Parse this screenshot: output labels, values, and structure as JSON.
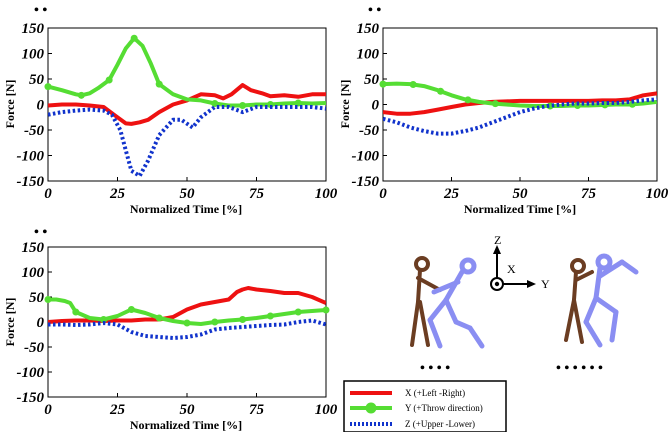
{
  "colors": {
    "x_series": "#ee1111",
    "y_series": "#55dd33",
    "z_series": "#1133cc",
    "figure_brown": "#6b3d22",
    "figure_blue": "#8a8ef2"
  },
  "chart_data": [
    {
      "type": "line",
      "panel_note": "• •",
      "xlabel": "Normalized Time [%]",
      "ylabel": "Force [N]",
      "xlim": [
        0,
        100
      ],
      "ylim": [
        -150,
        150
      ],
      "xticks": [
        0,
        25,
        50,
        75,
        100
      ],
      "yticks": [
        150,
        100,
        50,
        0,
        -50,
        -100,
        -150
      ],
      "series": [
        {
          "key": "x",
          "style": "solid",
          "x": [
            0,
            5,
            10,
            15,
            20,
            25,
            28,
            30,
            33,
            36,
            40,
            45,
            50,
            55,
            60,
            63,
            66,
            70,
            73,
            77,
            80,
            85,
            90,
            95,
            100
          ],
          "y": [
            -2,
            0,
            0,
            -2,
            -5,
            -25,
            -37,
            -38,
            -35,
            -30,
            -15,
            0,
            8,
            20,
            18,
            12,
            20,
            38,
            28,
            22,
            16,
            18,
            15,
            20,
            20
          ]
        },
        {
          "key": "y",
          "style": "marker",
          "x": [
            0,
            5,
            10,
            12,
            15,
            18,
            22,
            25,
            28,
            31,
            34,
            37,
            40,
            45,
            50,
            55,
            60,
            65,
            70,
            75,
            80,
            85,
            90,
            95,
            100
          ],
          "y": [
            35,
            28,
            20,
            18,
            22,
            32,
            48,
            78,
            110,
            130,
            115,
            80,
            40,
            20,
            10,
            8,
            2,
            -2,
            -2,
            0,
            0,
            2,
            3,
            2,
            3
          ],
          "markers_x": [
            0,
            12,
            22,
            31,
            40,
            60,
            70,
            80,
            90
          ]
        },
        {
          "key": "z",
          "style": "dotted",
          "x": [
            0,
            5,
            10,
            15,
            20,
            23,
            26,
            28,
            30,
            33,
            36,
            40,
            45,
            48,
            52,
            55,
            60,
            65,
            70,
            75,
            80,
            85,
            90,
            95,
            100
          ],
          "y": [
            -20,
            -15,
            -12,
            -10,
            -12,
            -20,
            -50,
            -90,
            -130,
            -140,
            -110,
            -60,
            -30,
            -30,
            -45,
            -25,
            -5,
            -5,
            -15,
            -5,
            -5,
            -5,
            -5,
            -5,
            -8
          ]
        }
      ]
    },
    {
      "type": "line",
      "panel_note": "• •",
      "xlabel": "Normalized Time [%]",
      "ylabel": "Force [N]",
      "xlim": [
        0,
        100
      ],
      "ylim": [
        -150,
        150
      ],
      "xticks": [
        0,
        25,
        50,
        75,
        100
      ],
      "yticks": [
        150,
        100,
        50,
        0,
        -50,
        -100,
        -150
      ],
      "series": [
        {
          "key": "x",
          "style": "solid",
          "x": [
            0,
            5,
            10,
            15,
            20,
            25,
            30,
            35,
            40,
            45,
            50,
            55,
            60,
            65,
            70,
            75,
            80,
            85,
            90,
            95,
            100
          ],
          "y": [
            -15,
            -18,
            -18,
            -15,
            -10,
            -5,
            0,
            3,
            5,
            6,
            7,
            7,
            7,
            7,
            7,
            7,
            8,
            8,
            10,
            18,
            22
          ]
        },
        {
          "key": "y",
          "style": "marker",
          "x": [
            0,
            5,
            10,
            15,
            20,
            25,
            30,
            35,
            40,
            45,
            50,
            55,
            60,
            65,
            70,
            75,
            80,
            85,
            90,
            95,
            100
          ],
          "y": [
            40,
            41,
            40,
            36,
            28,
            18,
            10,
            5,
            2,
            0,
            -2,
            -3,
            -3,
            -3,
            -2,
            -2,
            -1,
            0,
            0,
            2,
            5
          ],
          "markers_x": [
            0,
            11,
            21,
            31,
            41,
            61,
            71,
            81,
            91
          ]
        },
        {
          "key": "z",
          "style": "dotted",
          "x": [
            0,
            5,
            10,
            15,
            20,
            25,
            30,
            35,
            40,
            45,
            50,
            55,
            60,
            65,
            70,
            75,
            80,
            85,
            90,
            95,
            100
          ],
          "y": [
            -28,
            -35,
            -45,
            -52,
            -57,
            -57,
            -52,
            -45,
            -35,
            -25,
            -15,
            -8,
            -3,
            0,
            2,
            2,
            3,
            3,
            5,
            8,
            10
          ]
        }
      ]
    },
    {
      "type": "line",
      "panel_note": "• •",
      "xlabel": "Normalized Time [%]",
      "ylabel": "Force [N]",
      "xlim": [
        0,
        100
      ],
      "ylim": [
        -150,
        150
      ],
      "xticks": [
        0,
        25,
        50,
        75,
        100
      ],
      "yticks": [
        150,
        100,
        50,
        0,
        -50,
        -100,
        -150
      ],
      "series": [
        {
          "key": "x",
          "style": "solid",
          "x": [
            0,
            5,
            10,
            15,
            20,
            25,
            30,
            35,
            40,
            45,
            50,
            55,
            60,
            65,
            68,
            70,
            72,
            75,
            80,
            85,
            90,
            95,
            100
          ],
          "y": [
            0,
            2,
            3,
            3,
            2,
            3,
            3,
            5,
            5,
            10,
            25,
            35,
            40,
            45,
            60,
            65,
            68,
            65,
            62,
            58,
            58,
            50,
            38
          ]
        },
        {
          "key": "y",
          "style": "marker",
          "x": [
            0,
            3,
            6,
            8,
            10,
            15,
            20,
            25,
            30,
            35,
            40,
            45,
            50,
            55,
            60,
            65,
            70,
            75,
            80,
            85,
            90,
            95,
            100
          ],
          "y": [
            45,
            45,
            42,
            38,
            20,
            8,
            5,
            12,
            25,
            18,
            8,
            2,
            -2,
            -4,
            0,
            3,
            5,
            8,
            12,
            16,
            20,
            22,
            24
          ],
          "markers_x": [
            0,
            10,
            20,
            30,
            40,
            50,
            60,
            70,
            80,
            90,
            100
          ]
        },
        {
          "key": "z",
          "style": "dotted",
          "x": [
            0,
            5,
            10,
            15,
            20,
            25,
            30,
            35,
            40,
            45,
            50,
            55,
            60,
            65,
            70,
            75,
            80,
            85,
            90,
            95,
            100
          ],
          "y": [
            -5,
            -5,
            -6,
            -5,
            -2,
            -5,
            -20,
            -28,
            -30,
            -32,
            -30,
            -25,
            -15,
            -12,
            -10,
            -8,
            -6,
            -5,
            0,
            3,
            -5
          ]
        }
      ]
    }
  ],
  "legend": {
    "items": [
      {
        "key": "x",
        "label": "X (+Left -Right)"
      },
      {
        "key": "y",
        "label": "Y (+Throw direction)"
      },
      {
        "key": "z",
        "label": "Z (+Upper -Lower)"
      }
    ]
  },
  "figure": {
    "axis_z": "Z",
    "axis_x": "X",
    "axis_y": "Y",
    "left_caption": "• • • •",
    "right_caption": "• • • • • •"
  }
}
